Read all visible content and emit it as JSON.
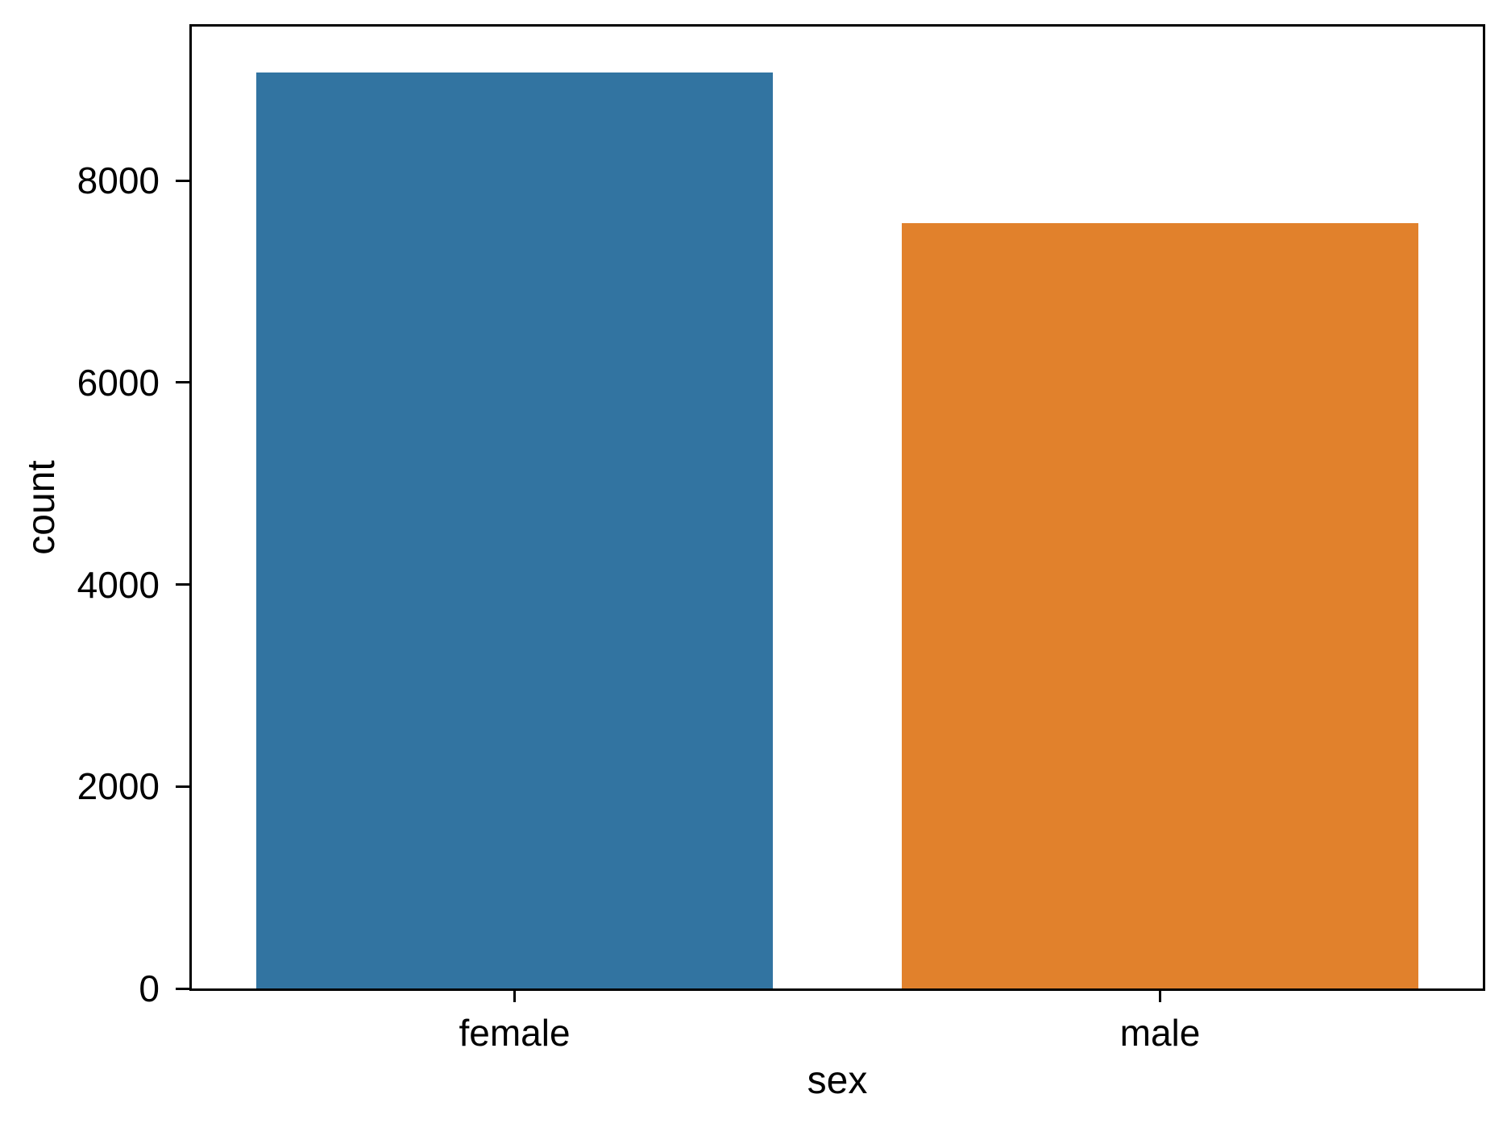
{
  "chart_data": {
    "type": "bar",
    "title": "",
    "xlabel": "sex",
    "ylabel": "count",
    "categories": [
      "female",
      "male"
    ],
    "values": [
      9072,
      7580
    ],
    "bar_colors": [
      "#3274a1",
      "#e1812c"
    ],
    "bar_width_fraction": 0.8,
    "ylim": [
      0,
      9525
    ],
    "yticks": [
      0,
      2000,
      4000,
      6000,
      8000
    ],
    "yticklabels": [
      "0",
      "2000",
      "4000",
      "6000",
      "8000"
    ],
    "grid": false,
    "legend_position": "none",
    "background_color": "#ffffff",
    "spine_color": "#000000"
  }
}
